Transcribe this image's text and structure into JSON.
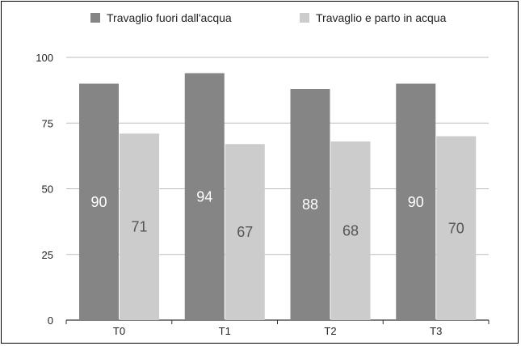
{
  "chart_data": {
    "type": "bar",
    "categories": [
      "T0",
      "T1",
      "T2",
      "T3"
    ],
    "series": [
      {
        "name": "Travaglio fuori dall'acqua",
        "values": [
          90,
          94,
          88,
          90
        ],
        "color": "#858585",
        "label_color": "#ffffff"
      },
      {
        "name": "Travaglio e parto in acqua",
        "values": [
          71,
          67,
          68,
          70
        ],
        "color": "#cccccc",
        "label_color": "#555555"
      }
    ],
    "ylim": [
      0,
      100
    ],
    "yticks": [
      0,
      25,
      50,
      75,
      100
    ],
    "grid": true,
    "legend": "top",
    "title": "",
    "xlabel": "",
    "ylabel": ""
  }
}
